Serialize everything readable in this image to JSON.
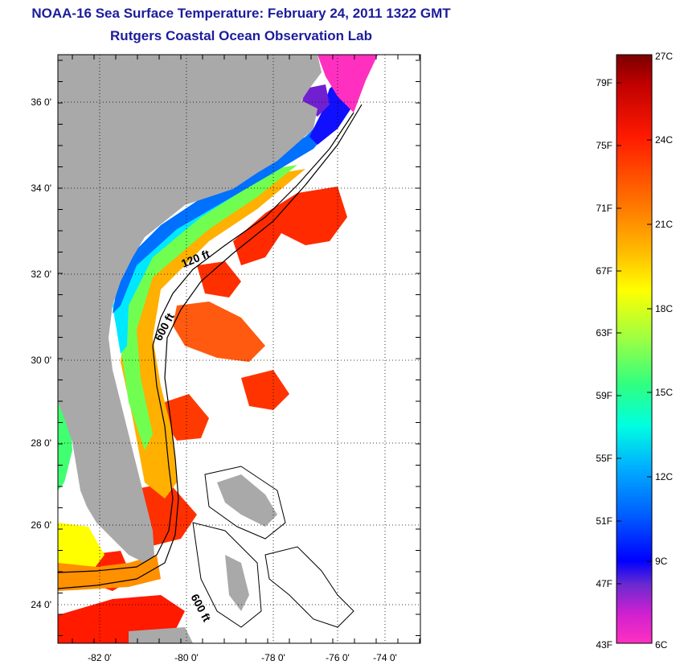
{
  "title": {
    "line1": "NOAA-16 Sea Surface Temperature:  February 24, 2011 1322 GMT",
    "line2": "Rutgers Coastal Ocean Observation Lab"
  },
  "map": {
    "lat_labels": [
      "36 0'",
      "34 0'",
      "32 0'",
      "30 0'",
      "28 0'",
      "26 0'",
      "24 0'"
    ],
    "lon_labels": [
      "-82 0'",
      "-80 0'",
      "-78 0'",
      "-76 0'",
      "-74 0'"
    ],
    "contour_labels": [
      "120 ft",
      "600 ft",
      "600 ft"
    ],
    "colors": {
      "land": "#a9a9a9",
      "ocean_nodata": "#ffffff",
      "grid": "#000000"
    }
  },
  "colorbar": {
    "fahrenheit_labels": [
      "79F",
      "75F",
      "71F",
      "67F",
      "63F",
      "59F",
      "55F",
      "51F",
      "47F",
      "43F"
    ],
    "celsius_labels": [
      "27C",
      "24C",
      "21C",
      "18C",
      "15C",
      "12C",
      "9C",
      "6C"
    ],
    "gradient_stops": [
      {
        "offset": 0.0,
        "color": "#7a0000"
      },
      {
        "offset": 0.05,
        "color": "#c00000"
      },
      {
        "offset": 0.14,
        "color": "#ff1a00"
      },
      {
        "offset": 0.26,
        "color": "#ff7a00"
      },
      {
        "offset": 0.34,
        "color": "#ffc000"
      },
      {
        "offset": 0.4,
        "color": "#ffff00"
      },
      {
        "offset": 0.48,
        "color": "#a0ff40"
      },
      {
        "offset": 0.56,
        "color": "#30ff80"
      },
      {
        "offset": 0.63,
        "color": "#00ffe0"
      },
      {
        "offset": 0.7,
        "color": "#00b0ff"
      },
      {
        "offset": 0.78,
        "color": "#0060ff"
      },
      {
        "offset": 0.86,
        "color": "#0000ff"
      },
      {
        "offset": 0.9,
        "color": "#6a2ad0"
      },
      {
        "offset": 0.95,
        "color": "#d020d0"
      },
      {
        "offset": 1.0,
        "color": "#ff30c0"
      }
    ]
  }
}
